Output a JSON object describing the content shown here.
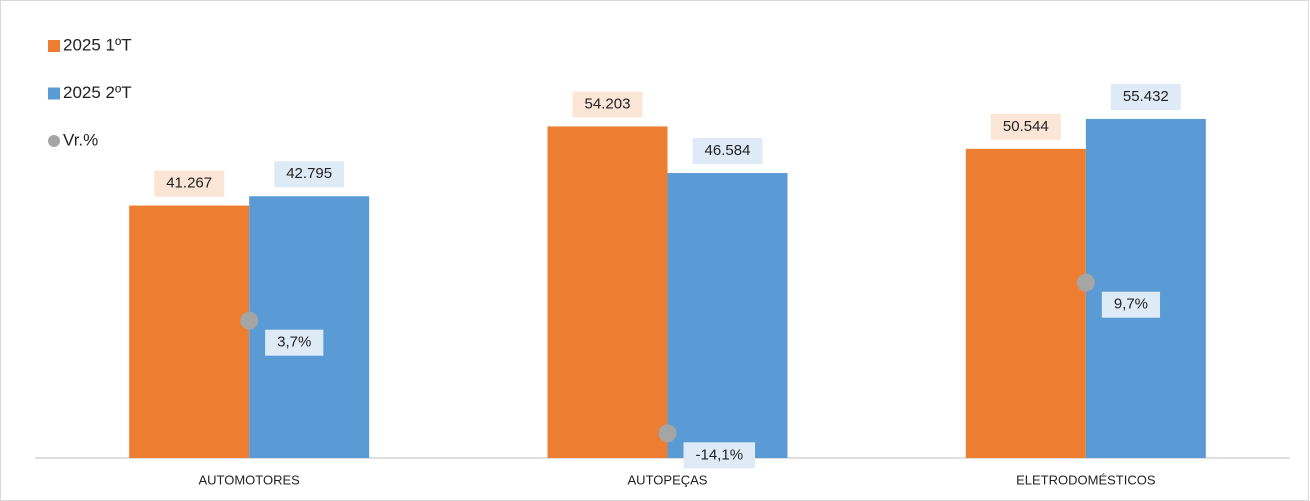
{
  "chart_data": {
    "type": "bar",
    "categories": [
      "AUTOMOTORES",
      "AUTOPEÇAS",
      "ELETRODOMÉSTICOS"
    ],
    "series": [
      {
        "name": "2025 1ºT",
        "color": "#ed7d31",
        "values": [
          41267,
          54203,
          50544
        ],
        "value_labels": [
          "41.267",
          "54.203",
          "50.544"
        ]
      },
      {
        "name": "2025 2ºT",
        "color": "#5b9bd5",
        "values": [
          42795,
          46584,
          55432
        ],
        "value_labels": [
          "42.795",
          "46.584",
          "55.432"
        ]
      },
      {
        "name": "Vr.%",
        "type": "scatter",
        "axis": "y2",
        "color": "#a5a5a5",
        "values": [
          3.7,
          -14.1,
          9.7
        ],
        "value_labels": [
          "3,7%",
          "-14,1%",
          "9,7%"
        ]
      }
    ],
    "ylim": [
      0,
      60000
    ],
    "y2lim": [
      -18,
      40
    ],
    "legend": "top-left"
  }
}
